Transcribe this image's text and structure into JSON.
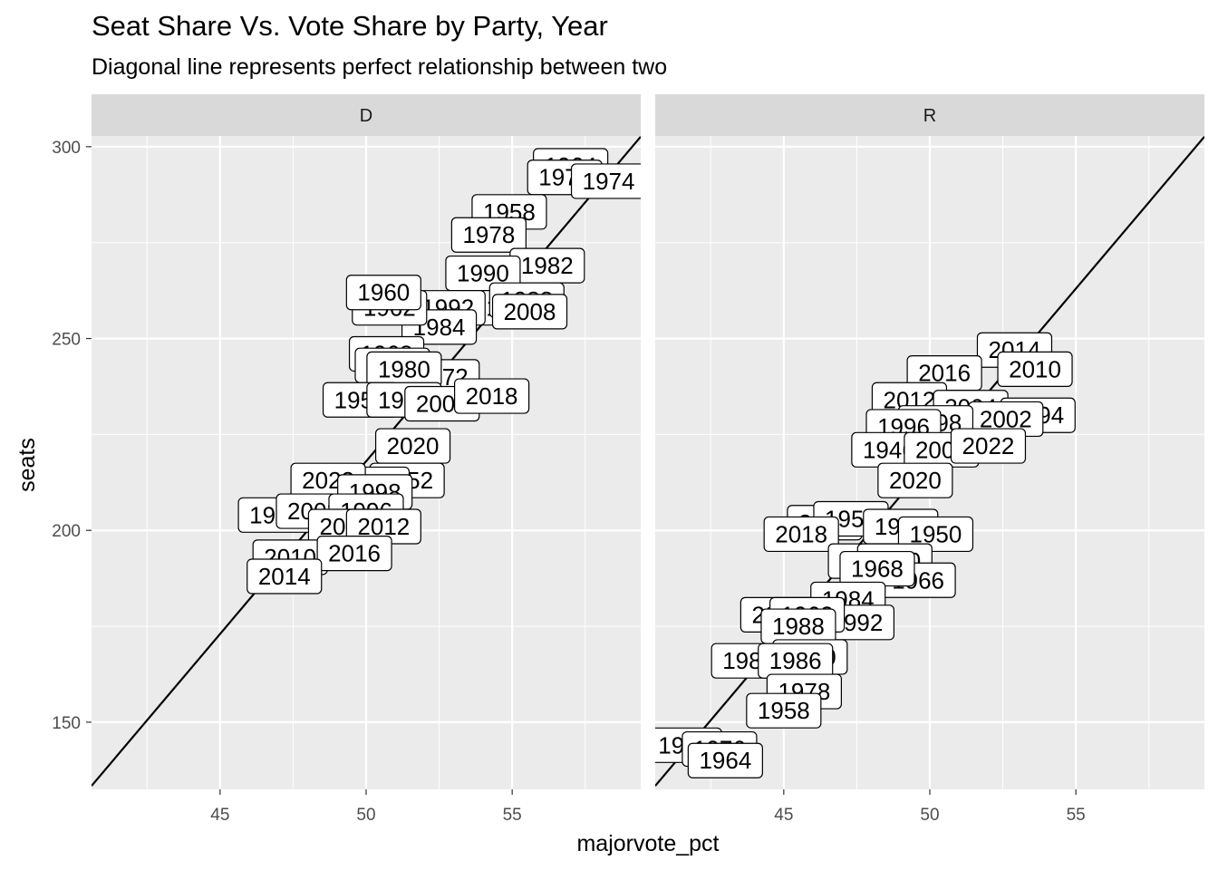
{
  "chart_data": {
    "type": "scatter",
    "title": "Seat Share Vs. Vote Share by Party, Year",
    "subtitle": "Diagonal line represents perfect relationship between two",
    "xlabel": "majorvote_pct",
    "ylabel": "seats",
    "xlim": [
      40.6,
      59.4
    ],
    "ylim": [
      132.5,
      302.8
    ],
    "x_ticks": [
      45,
      50,
      55
    ],
    "y_ticks": [
      150,
      200,
      250,
      300
    ],
    "grid": true,
    "reference_line": {
      "description": "diagonal",
      "slope": 9.0,
      "intercept": -232
    },
    "panels": [
      {
        "facet": "D",
        "points": [
          {
            "label": "1964",
            "x": 57.0,
            "y": 295
          },
          {
            "label": "1976",
            "x": 56.8,
            "y": 292
          },
          {
            "label": "1974",
            "x": 58.3,
            "y": 291
          },
          {
            "label": "1958",
            "x": 54.9,
            "y": 283
          },
          {
            "label": "1978",
            "x": 54.2,
            "y": 277
          },
          {
            "label": "1982",
            "x": 56.2,
            "y": 269
          },
          {
            "label": "1990",
            "x": 54.0,
            "y": 267
          },
          {
            "label": "1986",
            "x": 55.0,
            "y": 258
          },
          {
            "label": "1988",
            "x": 55.5,
            "y": 260
          },
          {
            "label": "2008",
            "x": 55.6,
            "y": 257
          },
          {
            "label": "1992",
            "x": 52.8,
            "y": 258
          },
          {
            "label": "1984",
            "x": 52.5,
            "y": 253
          },
          {
            "label": "1962",
            "x": 50.8,
            "y": 258
          },
          {
            "label": "1960",
            "x": 50.6,
            "y": 262
          },
          {
            "label": "1968",
            "x": 50.7,
            "y": 246
          },
          {
            "label": "1970",
            "x": 50.9,
            "y": 243
          },
          {
            "label": "1972",
            "x": 52.6,
            "y": 240
          },
          {
            "label": "1980",
            "x": 51.3,
            "y": 242
          },
          {
            "label": "1950",
            "x": 49.8,
            "y": 234
          },
          {
            "label": "1956",
            "x": 51.3,
            "y": 234
          },
          {
            "label": "2006",
            "x": 52.6,
            "y": 233
          },
          {
            "label": "2018",
            "x": 54.3,
            "y": 235
          },
          {
            "label": "2020",
            "x": 51.6,
            "y": 222
          },
          {
            "label": "1952",
            "x": 51.4,
            "y": 213
          },
          {
            "label": "2000",
            "x": 50.2,
            "y": 212
          },
          {
            "label": "2022",
            "x": 48.7,
            "y": 213
          },
          {
            "label": "1998",
            "x": 50.3,
            "y": 210
          },
          {
            "label": "1994",
            "x": 46.9,
            "y": 204
          },
          {
            "label": "2002",
            "x": 48.2,
            "y": 205
          },
          {
            "label": "1996",
            "x": 50.0,
            "y": 205
          },
          {
            "label": "2004",
            "x": 49.3,
            "y": 201
          },
          {
            "label": "2012",
            "x": 50.6,
            "y": 201
          },
          {
            "label": "2010",
            "x": 47.4,
            "y": 193
          },
          {
            "label": "2016",
            "x": 49.6,
            "y": 194
          },
          {
            "label": "2014",
            "x": 47.2,
            "y": 188
          }
        ]
      },
      {
        "facet": "R",
        "points": [
          {
            "label": "2014",
            "x": 52.9,
            "y": 247
          },
          {
            "label": "2010",
            "x": 53.6,
            "y": 242
          },
          {
            "label": "2016",
            "x": 50.5,
            "y": 241
          },
          {
            "label": "2012",
            "x": 49.3,
            "y": 234
          },
          {
            "label": "2004",
            "x": 51.4,
            "y": 232
          },
          {
            "label": "1994",
            "x": 53.7,
            "y": 230
          },
          {
            "label": "2002",
            "x": 52.6,
            "y": 229
          },
          {
            "label": "1998",
            "x": 50.2,
            "y": 228
          },
          {
            "label": "1996",
            "x": 49.1,
            "y": 227
          },
          {
            "label": "1946",
            "x": 48.6,
            "y": 221
          },
          {
            "label": "2000",
            "x": 50.4,
            "y": 221
          },
          {
            "label": "2022",
            "x": 52.0,
            "y": 222
          },
          {
            "label": "2020",
            "x": 49.5,
            "y": 213
          },
          {
            "label": "2006",
            "x": 46.4,
            "y": 202
          },
          {
            "label": "1952",
            "x": 47.3,
            "y": 203
          },
          {
            "label": "2018",
            "x": 45.6,
            "y": 199
          },
          {
            "label": "1956",
            "x": 49.0,
            "y": 201
          },
          {
            "label": "1950",
            "x": 50.2,
            "y": 199
          },
          {
            "label": "1970",
            "x": 47.8,
            "y": 192
          },
          {
            "label": "1980",
            "x": 48.8,
            "y": 192
          },
          {
            "label": "1966",
            "x": 49.6,
            "y": 187
          },
          {
            "label": "1968",
            "x": 48.2,
            "y": 190
          },
          {
            "label": "1984",
            "x": 47.2,
            "y": 182
          },
          {
            "label": "2008",
            "x": 44.8,
            "y": 178
          },
          {
            "label": "1992",
            "x": 47.5,
            "y": 176
          },
          {
            "label": "1962",
            "x": 45.8,
            "y": 178
          },
          {
            "label": "1988",
            "x": 45.5,
            "y": 175
          },
          {
            "label": "1982",
            "x": 43.8,
            "y": 166
          },
          {
            "label": "1990",
            "x": 45.9,
            "y": 167
          },
          {
            "label": "1986",
            "x": 45.4,
            "y": 166
          },
          {
            "label": "1978",
            "x": 45.7,
            "y": 158
          },
          {
            "label": "1958",
            "x": 45.0,
            "y": 153
          },
          {
            "label": "1974",
            "x": 41.6,
            "y": 144
          },
          {
            "label": "1976",
            "x": 42.8,
            "y": 143
          },
          {
            "label": "1964",
            "x": 43.0,
            "y": 140
          }
        ]
      }
    ]
  }
}
